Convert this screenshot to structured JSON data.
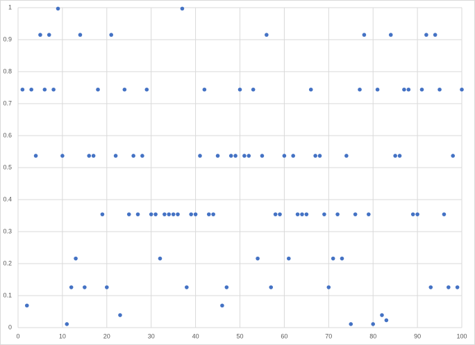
{
  "chart_data": {
    "type": "scatter",
    "x": [
      1,
      2,
      3,
      4,
      5,
      6,
      7,
      8,
      9,
      10,
      11,
      12,
      13,
      14,
      15,
      16,
      17,
      18,
      19,
      20,
      21,
      22,
      23,
      24,
      25,
      26,
      27,
      28,
      29,
      30,
      31,
      32,
      33,
      34,
      35,
      36,
      37,
      38,
      39,
      40,
      41,
      42,
      43,
      44,
      45,
      46,
      47,
      48,
      49,
      50,
      51,
      52,
      53,
      54,
      55,
      56,
      57,
      58,
      59,
      60,
      61,
      62,
      63,
      64,
      65,
      66,
      67,
      68,
      69,
      70,
      71,
      72,
      73,
      74,
      75,
      76,
      77,
      78,
      79,
      80,
      81,
      82,
      83,
      84,
      85,
      86,
      87,
      88,
      89,
      90,
      91,
      92,
      93,
      94,
      95,
      96,
      97,
      98,
      99,
      100
    ],
    "values": [
      0.744,
      0.069,
      0.744,
      0.537,
      0.915,
      0.744,
      0.915,
      0.744,
      0.997,
      0.537,
      0.011,
      0.126,
      0.216,
      0.915,
      0.126,
      0.537,
      0.537,
      0.744,
      0.354,
      0.126,
      0.915,
      0.537,
      0.039,
      0.744,
      0.354,
      0.537,
      0.354,
      0.537,
      0.744,
      0.354,
      0.354,
      0.216,
      0.354,
      0.354,
      0.354,
      0.354,
      0.997,
      0.126,
      0.354,
      0.354,
      0.537,
      0.744,
      0.354,
      0.354,
      0.537,
      0.069,
      0.126,
      0.537,
      0.537,
      0.744,
      0.537,
      0.537,
      0.744,
      0.216,
      0.537,
      0.915,
      0.126,
      0.354,
      0.354,
      0.537,
      0.216,
      0.537,
      0.354,
      0.354,
      0.354,
      0.744,
      0.537,
      0.537,
      0.354,
      0.126,
      0.216,
      0.354,
      0.216,
      0.537,
      0.011,
      0.354,
      0.744,
      0.915,
      0.354,
      0.011,
      0.744,
      0.039,
      0.023,
      0.915,
      0.537,
      0.537,
      0.744,
      0.744,
      0.354,
      0.354,
      0.744,
      0.915,
      0.126,
      0.915,
      0.744,
      0.354,
      0.126,
      0.537,
      0.126,
      0.744
    ],
    "color": "#4472c4",
    "xlim": [
      0,
      100
    ],
    "xticks": [
      0,
      10,
      20,
      30,
      40,
      50,
      60,
      70,
      80,
      90,
      100
    ],
    "ylim": [
      0,
      1
    ],
    "yticks": [
      0,
      0.1,
      0.2,
      0.3,
      0.4,
      0.5,
      0.6,
      0.7,
      0.8,
      0.9,
      1
    ],
    "grid": true
  }
}
